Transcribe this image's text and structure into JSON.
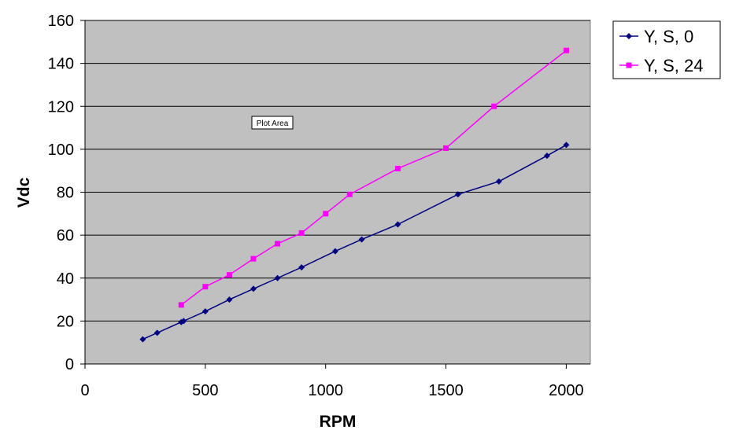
{
  "chart_data": {
    "type": "line",
    "title": "",
    "xlabel": "RPM",
    "ylabel": "Vdc",
    "xlim": [
      0,
      2100
    ],
    "ylim": [
      0,
      160
    ],
    "x_ticks": [
      0,
      500,
      1000,
      1500,
      2000
    ],
    "y_ticks": [
      0,
      20,
      40,
      60,
      80,
      100,
      120,
      140,
      160
    ],
    "grid": "horizontal",
    "plot_background": "#C0C0C0",
    "legend_position": "right",
    "tooltip": "Plot Area",
    "series": [
      {
        "name": "Y, S, 0",
        "color": "#000080",
        "marker": "diamond",
        "x": [
          240,
          300,
          400,
          410,
          500,
          600,
          700,
          800,
          900,
          1040,
          1150,
          1300,
          1550,
          1720,
          1920,
          2000
        ],
        "y": [
          11.5,
          14.5,
          19.5,
          20,
          24.5,
          30,
          35,
          40,
          45,
          52.5,
          58,
          65,
          79,
          85,
          97,
          102
        ]
      },
      {
        "name": "Y, S, 24",
        "color": "#FF00FF",
        "marker": "square",
        "x": [
          400,
          500,
          600,
          700,
          800,
          900,
          1000,
          1100,
          1300,
          1500,
          1700,
          2000
        ],
        "y": [
          27.5,
          36,
          41.5,
          49,
          56,
          61,
          70,
          79,
          91,
          100.5,
          120,
          146
        ]
      }
    ]
  }
}
